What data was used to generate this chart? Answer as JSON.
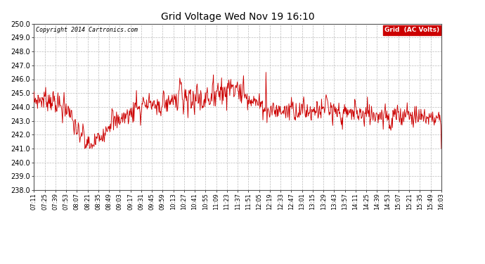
{
  "title": "Grid Voltage Wed Nov 19 16:10",
  "copyright_text": "Copyright 2014 Cartronics.com",
  "legend_label": "Grid  (AC Volts)",
  "legend_bg": "#cc0000",
  "legend_fg": "#ffffff",
  "line_color": "#cc0000",
  "bg_color": "#ffffff",
  "grid_color": "#bbbbbb",
  "ylim": [
    238.0,
    250.0
  ],
  "yticks": [
    238.0,
    239.0,
    240.0,
    241.0,
    242.0,
    243.0,
    244.0,
    245.0,
    246.0,
    247.0,
    248.0,
    249.0,
    250.0
  ],
  "x_labels": [
    "07:11",
    "07:25",
    "07:39",
    "07:53",
    "08:07",
    "08:21",
    "08:35",
    "08:49",
    "09:03",
    "09:17",
    "09:31",
    "09:45",
    "09:59",
    "10:13",
    "10:27",
    "10:41",
    "10:55",
    "11:09",
    "11:23",
    "11:37",
    "11:51",
    "12:05",
    "12:19",
    "12:33",
    "12:47",
    "13:01",
    "13:15",
    "13:29",
    "13:43",
    "13:57",
    "14:11",
    "14:25",
    "14:39",
    "14:53",
    "15:07",
    "15:21",
    "15:35",
    "15:49",
    "16:03"
  ],
  "seed": 7,
  "n_points": 800
}
